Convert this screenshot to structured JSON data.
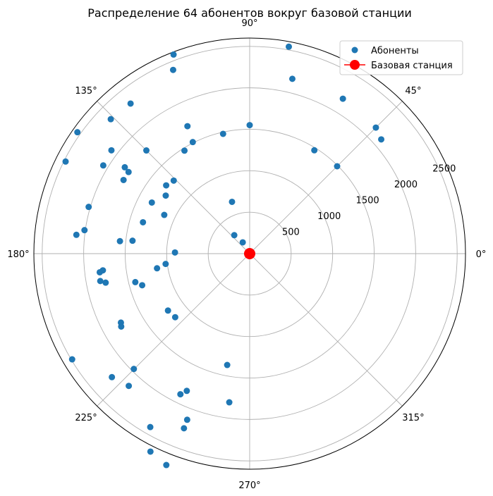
{
  "chart_data": {
    "type": "scatter",
    "projection": "polar",
    "title": "Распределение 64 абонентов вокруг базовой станции",
    "angle_unit": "degrees",
    "theta_ticks": [
      0,
      45,
      90,
      135,
      180,
      225,
      270,
      315
    ],
    "theta_tick_labels": [
      "0°",
      "45°",
      "90°",
      "135°",
      "180°",
      "225°",
      "270°",
      "315°"
    ],
    "r_ticks": [
      500,
      1000,
      1500,
      2000,
      2500
    ],
    "r_tick_labels": [
      "500",
      "1000",
      "1500",
      "2000",
      "2500"
    ],
    "rlim": [
      0,
      2600
    ],
    "grid": true,
    "legend_position": "top-right",
    "series": [
      {
        "name": "Абоненты",
        "color": "#1f77b4",
        "marker": "circle",
        "points": [
          {
            "theta": 79.3,
            "r": 2540
          },
          {
            "theta": 76.3,
            "r": 2170
          },
          {
            "theta": 59.0,
            "r": 2180
          },
          {
            "theta": 45.0,
            "r": 2150
          },
          {
            "theta": 41.0,
            "r": 2100
          },
          {
            "theta": 58.0,
            "r": 1470
          },
          {
            "theta": 45.0,
            "r": 1490
          },
          {
            "theta": 90.0,
            "r": 1550
          },
          {
            "theta": 102.5,
            "r": 1480
          },
          {
            "theta": 116.0,
            "r": 1710
          },
          {
            "theta": 117.0,
            "r": 1510
          },
          {
            "theta": 122.3,
            "r": 1470
          },
          {
            "theta": 110.9,
            "r": 2570
          },
          {
            "theta": 112.6,
            "r": 2400
          },
          {
            "theta": 128.4,
            "r": 2310
          },
          {
            "theta": 143.2,
            "r": 2080
          },
          {
            "theta": 135.9,
            "r": 2330
          },
          {
            "theta": 145.3,
            "r": 1830
          },
          {
            "theta": 135.0,
            "r": 1760
          },
          {
            "theta": 146.0,
            "r": 1760
          },
          {
            "theta": 149.7,
            "r": 1760
          },
          {
            "theta": 144.8,
            "r": 2540
          },
          {
            "theta": 153.4,
            "r": 2480
          },
          {
            "theta": 148.9,
            "r": 2060
          },
          {
            "theta": 145.3,
            "r": 1230
          },
          {
            "theta": 136.1,
            "r": 1270
          },
          {
            "theta": 140.7,
            "r": 1300
          },
          {
            "theta": 155.6,
            "r": 1130
          },
          {
            "theta": 108.8,
            "r": 660
          },
          {
            "theta": 129.8,
            "r": 290
          },
          {
            "theta": 121.5,
            "r": 160
          },
          {
            "theta": 171.9,
            "r": 2010
          },
          {
            "theta": 174.5,
            "r": 1570
          },
          {
            "theta": 173.7,
            "r": 1420
          },
          {
            "theta": 163.8,
            "r": 2020
          },
          {
            "theta": 179.1,
            "r": 900
          },
          {
            "theta": 173.8,
            "r": 2100
          },
          {
            "theta": 163.6,
            "r": 1340
          },
          {
            "theta": 152.4,
            "r": 1330
          },
          {
            "theta": 186.5,
            "r": 1780
          },
          {
            "theta": 189.0,
            "r": 1130
          },
          {
            "theta": 187.0,
            "r": 1020
          },
          {
            "theta": 187.1,
            "r": 1820
          },
          {
            "theta": 190.4,
            "r": 1830
          },
          {
            "theta": 191.4,
            "r": 1770
          },
          {
            "theta": 194.0,
            "r": 1420
          },
          {
            "theta": 196.4,
            "r": 1350
          },
          {
            "theta": 214.9,
            "r": 1200
          },
          {
            "theta": 220.5,
            "r": 1180
          },
          {
            "theta": 210.8,
            "r": 2490
          },
          {
            "theta": 208.2,
            "r": 1760
          },
          {
            "theta": 209.6,
            "r": 1780
          },
          {
            "theta": 221.9,
            "r": 2230
          },
          {
            "theta": 224.9,
            "r": 1970
          },
          {
            "theta": 227.6,
            "r": 2160
          },
          {
            "theta": 243.8,
            "r": 1890
          },
          {
            "theta": 245.4,
            "r": 1820
          },
          {
            "theta": 249.4,
            "r": 2140
          },
          {
            "theta": 249.4,
            "r": 2250
          },
          {
            "theta": 243.4,
            "r": 2670
          },
          {
            "theta": 240.2,
            "r": 2410
          },
          {
            "theta": 248.5,
            "r": 2740
          },
          {
            "theta": 258.6,
            "r": 1370
          },
          {
            "theta": 262.2,
            "r": 1810
          }
        ]
      },
      {
        "name": "Базовая станция",
        "color": "#ff0000",
        "marker": "circle",
        "points": [
          {
            "theta": 0,
            "r": 0
          }
        ]
      }
    ]
  }
}
